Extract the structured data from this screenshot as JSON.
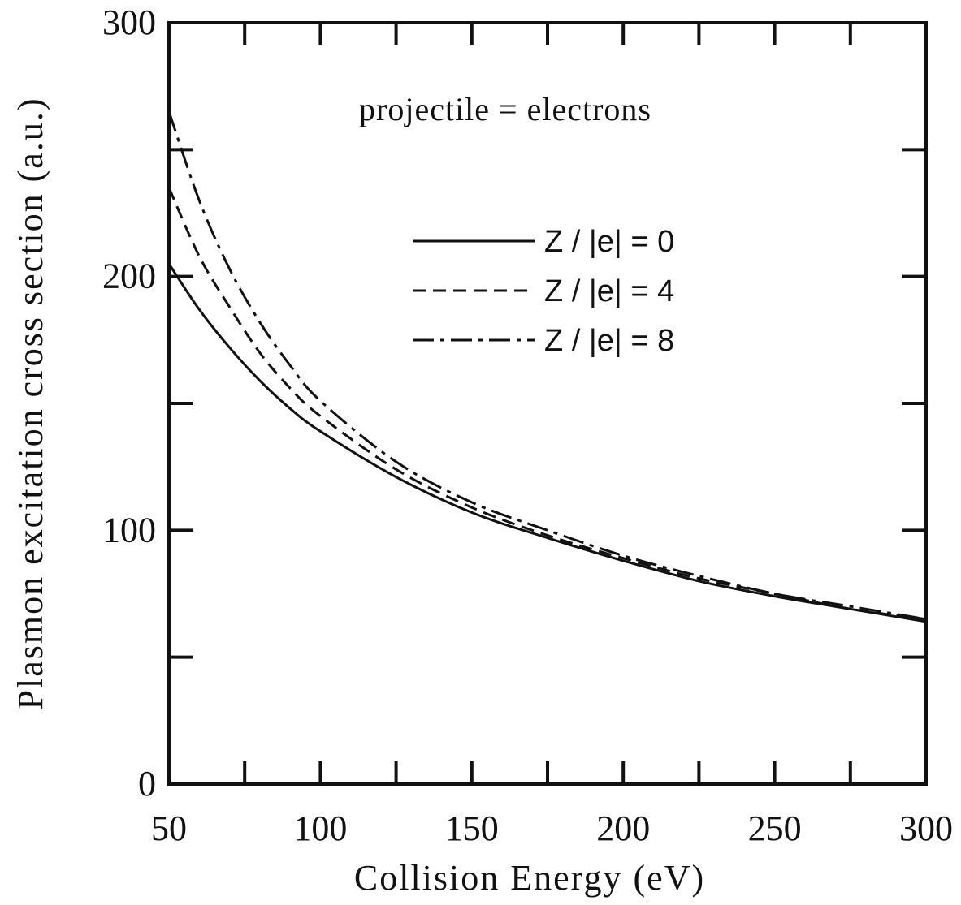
{
  "chart_data": {
    "type": "line",
    "title": "",
    "xlabel": "Collision Energy (eV)",
    "ylabel": "Plasmon excitation cross section (a.u.)",
    "xlim": [
      50,
      300
    ],
    "ylim": [
      0,
      300
    ],
    "xticks": [
      "50",
      "100",
      "150",
      "200",
      "250",
      "300"
    ],
    "yticks": [
      "0",
      "100",
      "200",
      "300"
    ],
    "annotation": "projectile = electrons",
    "grid": false,
    "legend_position": "upper-right",
    "x": [
      50,
      60,
      70,
      80,
      90,
      100,
      125,
      150,
      175,
      200,
      225,
      250,
      275,
      300
    ],
    "series": [
      {
        "name": "Z / |e| = 0",
        "style": "solid",
        "values": [
          205,
          187,
          172,
          159,
          148,
          139,
          121,
          107,
          97,
          88,
          80,
          74,
          69,
          64
        ]
      },
      {
        "name": "Z / |e| = 4",
        "style": "dashed",
        "values": [
          235,
          208,
          188,
          170,
          156,
          145,
          124,
          109,
          98,
          89,
          81,
          75,
          69,
          65
        ]
      },
      {
        "name": "Z / |e| = 8",
        "style": "dashdot",
        "values": [
          265,
          230,
          203,
          182,
          165,
          151,
          127,
          111,
          100,
          90,
          82,
          75,
          70,
          65
        ]
      }
    ]
  }
}
